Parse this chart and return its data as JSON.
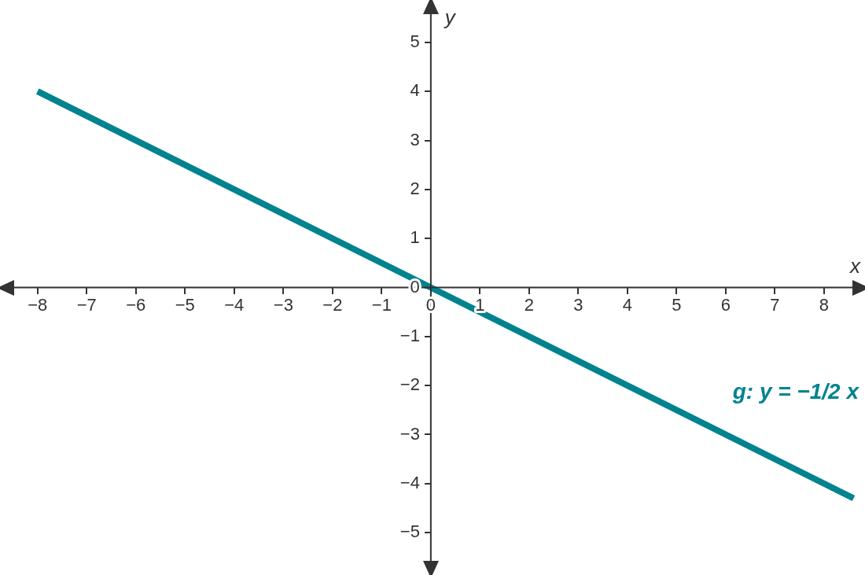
{
  "chart_data": {
    "type": "line",
    "xlabel": "x",
    "ylabel": "y",
    "x": [
      -8,
      8.6
    ],
    "series": [
      {
        "color": "#00838f",
        "values": [
          4,
          -4.3
        ]
      }
    ],
    "xlim": [
      -8.7,
      8.8
    ],
    "ylim": [
      -5.8,
      5.8
    ],
    "xticks": [
      {
        "value": -8,
        "label": "−8"
      },
      {
        "value": -7,
        "label": "−7"
      },
      {
        "value": -6,
        "label": "−6"
      },
      {
        "value": -5,
        "label": "−5"
      },
      {
        "value": -4,
        "label": "−4"
      },
      {
        "value": -3,
        "label": "−3"
      },
      {
        "value": -2,
        "label": "−2"
      },
      {
        "value": -1,
        "label": "−1"
      },
      0,
      1,
      2,
      3,
      4,
      5,
      6,
      7,
      8
    ],
    "yticks": [
      {
        "value": -5,
        "label": "−5"
      },
      {
        "value": -4,
        "label": "−4"
      },
      {
        "value": -3,
        "label": "−3"
      },
      {
        "value": -2,
        "label": "−2"
      },
      {
        "value": -1,
        "label": "−1"
      },
      0,
      1,
      2,
      3,
      4,
      5
    ],
    "annotations": [
      "g: y = −1/2 x"
    ],
    "grid": false,
    "legend": false,
    "marker": "none",
    "line_style": "solid"
  }
}
